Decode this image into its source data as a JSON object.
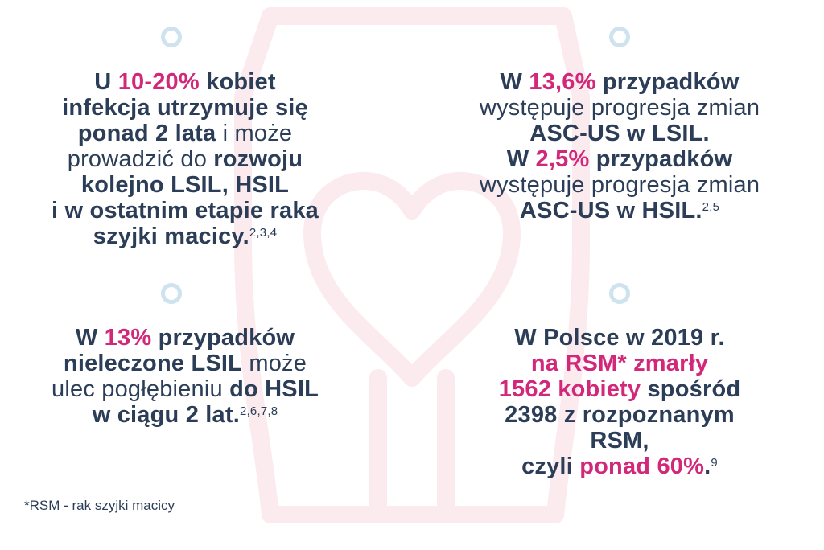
{
  "panels": {
    "top_left": {
      "l1": {
        "a": "U ",
        "b": "10-20%",
        "c": " kobiet"
      },
      "l2": "infekcja utrzymuje się",
      "l3": {
        "a": "ponad 2 lata",
        "b": " i może"
      },
      "l4": {
        "a": "prowadzić do ",
        "b": "rozwoju"
      },
      "l5": "kolejno LSIL, HSIL",
      "l6": "i w ostatnim etapie raka",
      "l7": {
        "a": "szyjki macicy.",
        "sup": "2,3,4"
      }
    },
    "top_right": {
      "l1": {
        "a": "W ",
        "b": "13,6%",
        "c": " przypadków"
      },
      "l2": "występuje progresja zmian",
      "l3": "ASC-US w LSIL.",
      "l4": {
        "a": "W ",
        "b": "2,5%",
        "c": " przypadków"
      },
      "l5": "występuje progresja zmian",
      "l6": {
        "a": "ASC-US w HSIL.",
        "sup": "2,5"
      }
    },
    "bottom_left": {
      "l1": {
        "a": "W ",
        "b": "13%",
        "c": " przypadków"
      },
      "l2": {
        "a": "nieleczone LSIL",
        "b": " może"
      },
      "l3": {
        "a": "ulec pogłębieniu ",
        "b": "do HSIL"
      },
      "l4": {
        "a": "w ciągu 2 lat.",
        "sup": "2,6,7,8"
      }
    },
    "bottom_right": {
      "l1": "W Polsce w 2019 r.",
      "l2": "na RSM* zmarły",
      "l3": {
        "a": "1562 kobiety",
        "b": " spośród"
      },
      "l4": "2398 z rozpoznanym",
      "l5": "RSM,",
      "l6": {
        "a": "czyli ",
        "b": "ponad 60%",
        "c": ".",
        "sup": "9"
      }
    }
  },
  "footnote": "*RSM - rak szyjki macicy",
  "icons": {
    "background": "uterus-heart-outline-icon",
    "bullet": "circle-bullet-icon"
  },
  "colors": {
    "text": "#2c3e57",
    "accent": "#d1287a",
    "bullet": "#cfe3ee",
    "background_figure": "#fbeaee"
  }
}
